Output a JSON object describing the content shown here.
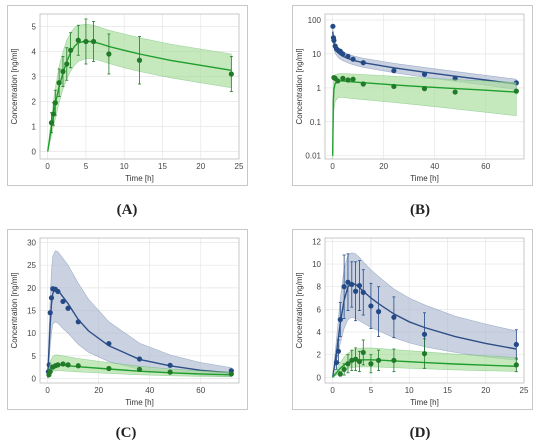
{
  "colors": {
    "green": "#1e9e2c",
    "green_band": "#a8dc9a",
    "green_dot": "#207a28",
    "blue": "#2d4f86",
    "blue_band": "#aebad2",
    "blue_dot": "#244a86",
    "frame": "#c8c8c8",
    "grid": "#e6e6e6"
  },
  "chart_data": [
    {
      "panel": "A",
      "type": "line",
      "xlabel": "Time [h]",
      "ylabel": "Concentration [ng/ml]",
      "xlim": [
        -1,
        25
      ],
      "ylim": [
        -0.3,
        5.5
      ],
      "xticks": [
        0,
        5,
        10,
        15,
        20,
        25
      ],
      "yticks": [
        0,
        1,
        2,
        3,
        4,
        5
      ],
      "yscale": "linear",
      "series": [
        {
          "color": "green",
          "curve_x": [
            0,
            0.25,
            0.5,
            0.75,
            1,
            1.5,
            2,
            2.5,
            3,
            3.5,
            4,
            5,
            6,
            7,
            8,
            10,
            12,
            16,
            20,
            24
          ],
          "curve_y": [
            0,
            0.5,
            1.0,
            1.5,
            1.9,
            2.6,
            3.15,
            3.6,
            3.95,
            4.2,
            4.35,
            4.42,
            4.38,
            4.3,
            4.2,
            4.05,
            3.9,
            3.65,
            3.45,
            3.25
          ],
          "band_low": [
            0,
            0.3,
            0.65,
            1.0,
            1.3,
            1.95,
            2.5,
            2.9,
            3.2,
            3.45,
            3.6,
            3.72,
            3.7,
            3.62,
            3.52,
            3.35,
            3.2,
            2.95,
            2.75,
            2.55
          ],
          "band_high": [
            0,
            0.75,
            1.4,
            2.0,
            2.55,
            3.4,
            4.0,
            4.45,
            4.75,
            4.95,
            5.05,
            5.1,
            5.05,
            4.95,
            4.85,
            4.7,
            4.55,
            4.3,
            4.1,
            3.9
          ],
          "points_x": [
            0.5,
            0.75,
            1,
            1.5,
            2,
            2.5,
            3,
            4,
            5,
            6,
            8,
            12,
            24
          ],
          "points_y": [
            1.15,
            1.5,
            1.95,
            2.75,
            3.2,
            3.5,
            4.05,
            4.45,
            4.4,
            4.4,
            3.9,
            3.65,
            3.1
          ],
          "err": [
            0.4,
            0.45,
            0.5,
            0.55,
            0.6,
            0.65,
            0.7,
            0.6,
            0.9,
            0.8,
            0.8,
            0.95,
            0.7
          ]
        }
      ]
    },
    {
      "panel": "B",
      "type": "line",
      "xlabel": "Time [h]",
      "ylabel": "Concentration [ng/ml]",
      "xlim": [
        -3,
        75
      ],
      "ylim": [
        0.008,
        150
      ],
      "xticks": [
        0,
        20,
        40,
        60
      ],
      "yticks": [
        0.01,
        0.1,
        1,
        10,
        100
      ],
      "ytick_labels": [
        "0.01",
        "0.1",
        "1",
        "10",
        "100"
      ],
      "yscale": "log",
      "series": [
        {
          "color": "blue",
          "curve_x": [
            0,
            0.5,
            1,
            2,
            3,
            4,
            6,
            8,
            12,
            24,
            36,
            48,
            60,
            72
          ],
          "curve_y": [
            45,
            22,
            15,
            11,
            9.5,
            8.5,
            7.3,
            6.5,
            5.5,
            3.9,
            2.9,
            2.2,
            1.7,
            1.3
          ],
          "band_low": [
            28,
            15,
            10.5,
            8,
            7,
            6.3,
            5.4,
            4.8,
            4.0,
            2.8,
            2.05,
            1.55,
            1.2,
            0.9
          ],
          "band_high": [
            65,
            32,
            21,
            15,
            13,
            11.5,
            9.8,
            8.8,
            7.4,
            5.3,
            4.0,
            3.05,
            2.35,
            1.8
          ],
          "points_x": [
            0.1,
            0.3,
            0.5,
            1,
            1.5,
            2,
            3,
            4,
            6,
            8,
            12,
            24,
            36,
            48,
            72
          ],
          "points_y": [
            65,
            30,
            25,
            17,
            14,
            13,
            12,
            10,
            8.5,
            7,
            5.5,
            3.2,
            2.5,
            1.9,
            1.4
          ],
          "err": []
        },
        {
          "color": "green",
          "curve_x": [
            0,
            0.25,
            0.5,
            1,
            2,
            3,
            4,
            6,
            8,
            12,
            24,
            36,
            48,
            60,
            72
          ],
          "curve_y": [
            0.01,
            0.4,
            0.9,
            1.35,
            1.55,
            1.6,
            1.6,
            1.55,
            1.5,
            1.42,
            1.22,
            1.07,
            0.95,
            0.85,
            0.75
          ],
          "band_low": [
            0.008,
            0.06,
            0.22,
            0.4,
            0.5,
            0.52,
            0.52,
            0.5,
            0.48,
            0.45,
            0.37,
            0.3,
            0.24,
            0.19,
            0.15
          ],
          "band_high": [
            0.012,
            1.2,
            1.9,
            2.4,
            2.6,
            2.65,
            2.65,
            2.6,
            2.55,
            2.45,
            2.2,
            1.95,
            1.75,
            1.6,
            1.45
          ],
          "points_x": [
            0.5,
            1,
            2,
            4,
            6,
            8,
            12,
            24,
            36,
            48,
            72
          ],
          "points_y": [
            2.0,
            1.9,
            1.6,
            1.9,
            1.7,
            1.8,
            1.3,
            1.1,
            0.95,
            0.75,
            0.8
          ],
          "err": []
        }
      ]
    },
    {
      "panel": "C",
      "type": "line",
      "xlabel": "Time [h]",
      "ylabel": "Concentration [ng/ml]",
      "xlim": [
        -3,
        75
      ],
      "ylim": [
        -1,
        31
      ],
      "xticks": [
        0,
        20,
        40,
        60
      ],
      "yticks": [
        0,
        5,
        10,
        15,
        20,
        25,
        30
      ],
      "yscale": "linear",
      "series": [
        {
          "color": "blue",
          "curve_x": [
            0,
            0.5,
            1,
            1.5,
            2,
            3,
            4,
            6,
            8,
            12,
            16,
            24,
            36,
            48,
            60,
            72
          ],
          "curve_y": [
            0.5,
            6,
            12,
            16.5,
            18.8,
            19.8,
            19.5,
            18,
            16.5,
            13,
            10.5,
            7.2,
            4.2,
            2.8,
            1.8,
            1.2
          ],
          "band_low": [
            0.3,
            3,
            7,
            10,
            12,
            12.5,
            12.2,
            11,
            10,
            7.5,
            5.8,
            3.7,
            2.0,
            1.2,
            0.7,
            0.4
          ],
          "band_high": [
            0.7,
            10,
            18,
            24,
            27,
            28.2,
            28,
            26.5,
            25,
            21,
            17.5,
            12.5,
            7.8,
            5.2,
            3.5,
            2.4
          ],
          "points_x": [
            0.3,
            0.6,
            1,
            1.5,
            2,
            3,
            4,
            6,
            8,
            12,
            24,
            36,
            48,
            72
          ],
          "points_y": [
            1.5,
            3,
            14.5,
            17.8,
            19.8,
            19.7,
            19.2,
            17,
            15.5,
            12.5,
            7.7,
            4.3,
            2.9,
            1.7
          ],
          "err": []
        },
        {
          "color": "green",
          "curve_x": [
            0,
            0.5,
            1,
            2,
            3,
            4,
            6,
            8,
            12,
            24,
            36,
            48,
            60,
            72
          ],
          "curve_y": [
            0.2,
            1.2,
            2.2,
            2.8,
            3.0,
            3.0,
            2.9,
            2.8,
            2.6,
            2.1,
            1.6,
            1.25,
            1.0,
            0.8
          ],
          "band_low": [
            0.1,
            0.6,
            1.2,
            1.6,
            1.7,
            1.7,
            1.65,
            1.6,
            1.45,
            1.1,
            0.8,
            0.6,
            0.45,
            0.35
          ],
          "band_high": [
            0.3,
            2.2,
            3.8,
            4.9,
            5.2,
            5.2,
            5.0,
            4.8,
            4.4,
            3.5,
            2.7,
            2.1,
            1.7,
            1.4
          ],
          "points_x": [
            0.5,
            1,
            2,
            3,
            4,
            6,
            8,
            12,
            24,
            36,
            48,
            72
          ],
          "points_y": [
            0.8,
            1.5,
            2.5,
            2.8,
            3.0,
            3.2,
            3.0,
            2.8,
            2.2,
            2.0,
            1.4,
            1.0
          ],
          "err": []
        }
      ]
    },
    {
      "panel": "D",
      "type": "line",
      "xlabel": "Time [h]",
      "ylabel": "Concentration [ng/ml]",
      "xlim": [
        -1,
        25
      ],
      "ylim": [
        -0.5,
        12.3
      ],
      "xticks": [
        0,
        5,
        10,
        15,
        20,
        25
      ],
      "yticks": [
        0,
        2,
        4,
        6,
        8,
        10,
        12
      ],
      "yscale": "linear",
      "series": [
        {
          "color": "blue",
          "curve_x": [
            0,
            0.5,
            1,
            1.5,
            2,
            2.5,
            3,
            3.5,
            4,
            5,
            6,
            8,
            10,
            12,
            16,
            20,
            24
          ],
          "curve_y": [
            0,
            2.2,
            4.8,
            6.8,
            8.0,
            8.3,
            8.2,
            7.9,
            7.6,
            7.0,
            6.5,
            5.6,
            4.9,
            4.4,
            3.6,
            3.0,
            2.5
          ],
          "band_low": [
            0,
            1.4,
            3.0,
            4.3,
            5.1,
            5.3,
            5.2,
            5.0,
            4.8,
            4.4,
            4.1,
            3.5,
            3.05,
            2.7,
            2.2,
            1.8,
            1.5
          ],
          "band_high": [
            0,
            3.4,
            7.0,
            9.6,
            10.8,
            11.0,
            10.9,
            10.6,
            10.2,
            9.5,
            8.9,
            7.8,
            7.0,
            6.4,
            5.4,
            4.7,
            4.1
          ],
          "points_x": [
            0.5,
            0.75,
            1,
            1.5,
            2,
            2.5,
            3,
            3.5,
            4,
            5,
            6,
            8,
            12,
            24
          ],
          "points_y": [
            1.3,
            2.3,
            5.1,
            8.0,
            8.4,
            8.2,
            7.6,
            8.1,
            7.5,
            6.3,
            5.8,
            5.3,
            3.8,
            2.9
          ],
          "err": [
            0.6,
            1.0,
            1.5,
            2.8,
            2.5,
            2.0,
            2.6,
            2.2,
            2.0,
            2.0,
            2.2,
            1.8,
            1.9,
            1.3
          ]
        },
        {
          "color": "green",
          "curve_x": [
            0,
            0.5,
            1,
            1.5,
            2,
            3,
            4,
            5,
            6,
            8,
            10,
            12,
            16,
            20,
            24
          ],
          "curve_y": [
            0,
            0.4,
            0.8,
            1.1,
            1.3,
            1.5,
            1.55,
            1.55,
            1.52,
            1.45,
            1.38,
            1.3,
            1.18,
            1.07,
            0.97
          ],
          "band_low": [
            0,
            0.2,
            0.45,
            0.65,
            0.8,
            0.9,
            0.92,
            0.92,
            0.9,
            0.85,
            0.8,
            0.75,
            0.66,
            0.58,
            0.52
          ],
          "band_high": [
            0,
            0.7,
            1.3,
            1.8,
            2.15,
            2.5,
            2.6,
            2.6,
            2.55,
            2.45,
            2.35,
            2.25,
            2.05,
            1.9,
            1.75
          ],
          "points_x": [
            1,
            1.5,
            2,
            2.5,
            3,
            3.5,
            4,
            5,
            6,
            8,
            12,
            24
          ],
          "points_y": [
            0.3,
            0.7,
            1.2,
            1.5,
            1.6,
            1.4,
            2.2,
            1.2,
            1.5,
            1.5,
            2.1,
            1.1
          ],
          "err": [
            0.2,
            0.5,
            0.8,
            0.9,
            1.0,
            0.9,
            1.1,
            0.8,
            0.9,
            1.0,
            1.3,
            0.6
          ]
        }
      ]
    }
  ],
  "captions": [
    "(A)",
    "(B)",
    "(C)",
    "(D)"
  ]
}
